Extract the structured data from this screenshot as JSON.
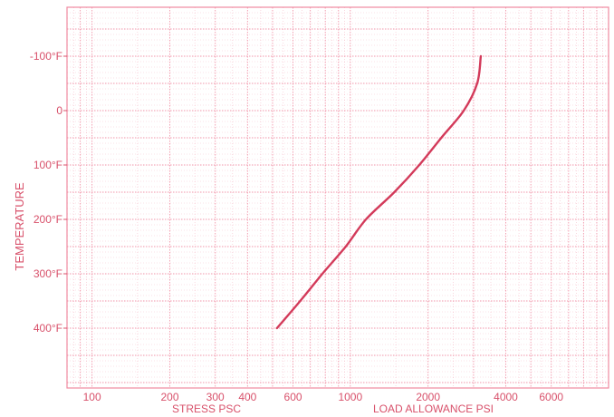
{
  "chart_data": {
    "type": "line",
    "title": "",
    "xlabel": [
      "STRESS PSC",
      "LOAD ALLOWANCE PSI"
    ],
    "ylabel": "TEMPERATURE",
    "x_scale": "log",
    "xlim": [
      80,
      10000
    ],
    "ylim": [
      -190,
      510
    ],
    "y_inverted": true,
    "grid": true,
    "x_ticks": [
      {
        "value": 100,
        "label": "100"
      },
      {
        "value": 200,
        "label": "200"
      },
      {
        "value": 300,
        "label": "300"
      },
      {
        "value": 400,
        "label": "400"
      },
      {
        "value": 600,
        "label": "600"
      },
      {
        "value": 1000,
        "label": "1000"
      },
      {
        "value": 2000,
        "label": "2000"
      },
      {
        "value": 4000,
        "label": "4000"
      },
      {
        "value": 6000,
        "label": "6000"
      }
    ],
    "y_ticks": [
      {
        "value": -100,
        "label": "-100°F"
      },
      {
        "value": 0,
        "label": "0"
      },
      {
        "value": 100,
        "label": "100°F"
      },
      {
        "value": 200,
        "label": "200°F"
      },
      {
        "value": 300,
        "label": "300°F"
      },
      {
        "value": 400,
        "label": "400°F"
      }
    ],
    "series": [
      {
        "color": "#d33a5a",
        "points": [
          {
            "x": 3200,
            "y": -100
          },
          {
            "x": 3100,
            "y": -50
          },
          {
            "x": 2750,
            "y": 0
          },
          {
            "x": 2250,
            "y": 50
          },
          {
            "x": 1850,
            "y": 100
          },
          {
            "x": 1480,
            "y": 150
          },
          {
            "x": 1150,
            "y": 200
          },
          {
            "x": 960,
            "y": 250
          },
          {
            "x": 780,
            "y": 300
          },
          {
            "x": 640,
            "y": 350
          },
          {
            "x": 520,
            "y": 400
          }
        ]
      }
    ],
    "colors": {
      "grid": "#f08aa0",
      "text": "#d8506a",
      "line": "#d33a5a"
    }
  }
}
